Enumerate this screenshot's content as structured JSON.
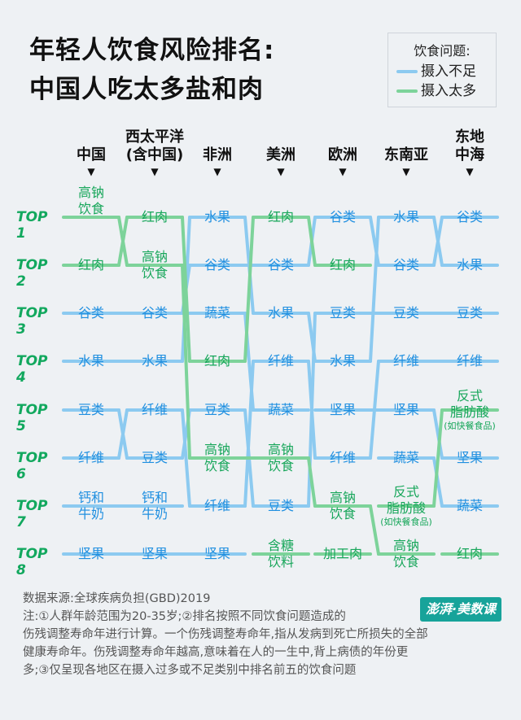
{
  "title": {
    "line1": "年轻人饮食风险排名:",
    "line2": "中国人吃太多盐和肉"
  },
  "legend": {
    "title": "饮食问题:",
    "low_label": "摄入不足",
    "high_label": "摄入太多",
    "low_color": "#8ccaf0",
    "high_color": "#7dd39a"
  },
  "columns": [
    {
      "head": [
        "中国"
      ]
    },
    {
      "head": [
        "西太平洋",
        "(含中国)"
      ]
    },
    {
      "head": [
        "非洲"
      ]
    },
    {
      "head": [
        "美洲"
      ]
    },
    {
      "head": [
        "欧洲"
      ]
    },
    {
      "head": [
        "东南亚"
      ]
    },
    {
      "head": [
        "东地",
        "中海"
      ]
    }
  ],
  "arrow_glyph": "▼",
  "ranks": [
    "TOP 1",
    "TOP 2",
    "TOP 3",
    "TOP 4",
    "TOP 5",
    "TOP 6",
    "TOP 7",
    "TOP 8"
  ],
  "chart_data": {
    "type": "table",
    "regions": [
      "中国",
      "西太平洋(含中国)",
      "非洲",
      "美洲",
      "欧洲",
      "东南亚",
      "东地中海"
    ],
    "categories": {
      "高钠饮食": {
        "type": "high",
        "ranks": [
          1,
          2,
          6,
          6,
          7,
          8,
          null
        ]
      },
      "红肉": {
        "type": "high",
        "ranks": [
          2,
          1,
          4,
          1,
          2,
          null,
          8
        ]
      },
      "谷类": {
        "type": "low",
        "ranks": [
          3,
          3,
          2,
          2,
          1,
          2,
          1
        ]
      },
      "水果": {
        "type": "low",
        "ranks": [
          4,
          4,
          1,
          3,
          4,
          1,
          2
        ]
      },
      "豆类": {
        "type": "low",
        "ranks": [
          5,
          6,
          5,
          7,
          3,
          3,
          3
        ]
      },
      "纤维": {
        "type": "low",
        "ranks": [
          6,
          5,
          7,
          4,
          6,
          4,
          4
        ]
      },
      "钙和牛奶": {
        "type": "low",
        "ranks": [
          7,
          7,
          null,
          null,
          null,
          null,
          null
        ]
      },
      "坚果": {
        "type": "low",
        "ranks": [
          8,
          8,
          8,
          null,
          5,
          5,
          6
        ]
      },
      "蔬菜": {
        "type": "low",
        "ranks": [
          null,
          null,
          3,
          5,
          null,
          6,
          7
        ]
      },
      "含糖饮料": {
        "type": "high",
        "ranks": [
          null,
          null,
          null,
          8,
          null,
          null,
          null
        ]
      },
      "加工肉": {
        "type": "high",
        "ranks": [
          null,
          null,
          null,
          null,
          8,
          null,
          null
        ]
      },
      "反式脂肪酸": {
        "type": "high",
        "ranks": [
          null,
          null,
          null,
          null,
          null,
          7,
          5
        ]
      }
    }
  },
  "cells": [
    [
      {
        "lines": [
          "高钠",
          "饮食"
        ],
        "type": "high"
      },
      {
        "lines": [
          "红肉"
        ],
        "type": "high"
      },
      {
        "lines": [
          "谷类"
        ],
        "type": "low"
      },
      {
        "lines": [
          "水果"
        ],
        "type": "low"
      },
      {
        "lines": [
          "豆类"
        ],
        "type": "low"
      },
      {
        "lines": [
          "纤维"
        ],
        "type": "low"
      },
      {
        "lines": [
          "钙和",
          "牛奶"
        ],
        "type": "low"
      },
      {
        "lines": [
          "坚果"
        ],
        "type": "low"
      }
    ],
    [
      {
        "lines": [
          "红肉"
        ],
        "type": "high"
      },
      {
        "lines": [
          "高钠",
          "饮食"
        ],
        "type": "high"
      },
      {
        "lines": [
          "谷类"
        ],
        "type": "low"
      },
      {
        "lines": [
          "水果"
        ],
        "type": "low"
      },
      {
        "lines": [
          "纤维"
        ],
        "type": "low"
      },
      {
        "lines": [
          "豆类"
        ],
        "type": "low"
      },
      {
        "lines": [
          "钙和",
          "牛奶"
        ],
        "type": "low"
      },
      {
        "lines": [
          "坚果"
        ],
        "type": "low"
      }
    ],
    [
      {
        "lines": [
          "水果"
        ],
        "type": "low"
      },
      {
        "lines": [
          "谷类"
        ],
        "type": "low"
      },
      {
        "lines": [
          "蔬菜"
        ],
        "type": "low"
      },
      {
        "lines": [
          "红肉"
        ],
        "type": "high"
      },
      {
        "lines": [
          "豆类"
        ],
        "type": "low"
      },
      {
        "lines": [
          "高钠",
          "饮食"
        ],
        "type": "high"
      },
      {
        "lines": [
          "纤维"
        ],
        "type": "low"
      },
      {
        "lines": [
          "坚果"
        ],
        "type": "low"
      }
    ],
    [
      {
        "lines": [
          "红肉"
        ],
        "type": "high"
      },
      {
        "lines": [
          "谷类"
        ],
        "type": "low"
      },
      {
        "lines": [
          "水果"
        ],
        "type": "low"
      },
      {
        "lines": [
          "纤维"
        ],
        "type": "low"
      },
      {
        "lines": [
          "蔬菜"
        ],
        "type": "low"
      },
      {
        "lines": [
          "高钠",
          "饮食"
        ],
        "type": "high"
      },
      {
        "lines": [
          "豆类"
        ],
        "type": "low"
      },
      {
        "lines": [
          "含糖",
          "饮料"
        ],
        "type": "high"
      }
    ],
    [
      {
        "lines": [
          "谷类"
        ],
        "type": "low"
      },
      {
        "lines": [
          "红肉"
        ],
        "type": "high"
      },
      {
        "lines": [
          "豆类"
        ],
        "type": "low"
      },
      {
        "lines": [
          "水果"
        ],
        "type": "low"
      },
      {
        "lines": [
          "坚果"
        ],
        "type": "low"
      },
      {
        "lines": [
          "纤维"
        ],
        "type": "low"
      },
      {
        "lines": [
          "高钠",
          "饮食"
        ],
        "type": "high"
      },
      {
        "lines": [
          "加工肉"
        ],
        "type": "high"
      }
    ],
    [
      {
        "lines": [
          "水果"
        ],
        "type": "low"
      },
      {
        "lines": [
          "谷类"
        ],
        "type": "low"
      },
      {
        "lines": [
          "豆类"
        ],
        "type": "low"
      },
      {
        "lines": [
          "纤维"
        ],
        "type": "low"
      },
      {
        "lines": [
          "坚果"
        ],
        "type": "low"
      },
      {
        "lines": [
          "蔬菜"
        ],
        "type": "low"
      },
      {
        "lines": [
          "反式",
          "脂肪酸"
        ],
        "note": "(如快餐食品)",
        "type": "high"
      },
      {
        "lines": [
          "高钠",
          "饮食"
        ],
        "type": "high"
      }
    ],
    [
      {
        "lines": [
          "谷类"
        ],
        "type": "low"
      },
      {
        "lines": [
          "水果"
        ],
        "type": "low"
      },
      {
        "lines": [
          "豆类"
        ],
        "type": "low"
      },
      {
        "lines": [
          "纤维"
        ],
        "type": "low"
      },
      {
        "lines": [
          "反式",
          "脂肪酸"
        ],
        "note": "(如快餐食品)",
        "type": "high"
      },
      {
        "lines": [
          "坚果"
        ],
        "type": "low"
      },
      {
        "lines": [
          "蔬菜"
        ],
        "type": "low"
      },
      {
        "lines": [
          "红肉"
        ],
        "type": "high"
      }
    ]
  ],
  "footer": {
    "source": "数据来源:全球疾病负担(GBD)2019",
    "note1": "注:①人群年龄范围为20-35岁;②排名按照不同饮食问题造成的",
    "note2": "伤残调整寿命年进行计算。一个伤残调整寿命年,指从发病到死亡所损失的全部",
    "note3": "健康寿命年。伤残调整寿命年越高,意味着在人的一生中,背上病债的年份更",
    "note4": "多;③仅呈现各地区在摄入过多或不足类别中排名前五的饮食问题"
  },
  "brand": "澎湃·美数课"
}
